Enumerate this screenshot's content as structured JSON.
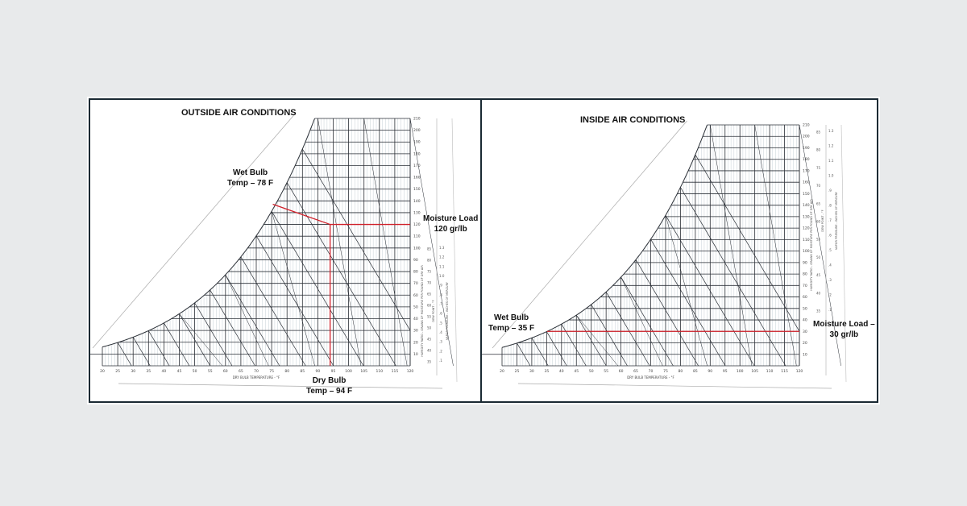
{
  "colors": {
    "background": "#e8eaeb",
    "grid": "#2a2f36",
    "fine_grid": "#b8c4cc",
    "marker": "#d0202a",
    "border": "#1a2a33"
  },
  "axes": {
    "dry_bulb_label": "DRY BULB TEMPERATURE - °F",
    "humidity_label": "HUMIDITY RATIO - GRAINS OF MOISTURE PER POUND OF DRY AIR",
    "vapor_pressure_label": "VAPOR PRESSURE - INCHES OF MERCURY",
    "dew_point_label": "DEW POINT - °F",
    "dry_bulb_ticks": [
      20,
      25,
      30,
      35,
      40,
      45,
      50,
      55,
      60,
      65,
      70,
      75,
      80,
      85,
      90,
      95,
      100,
      105,
      110,
      115,
      120
    ],
    "humidity_ticks": [
      10,
      20,
      30,
      40,
      50,
      60,
      70,
      80,
      90,
      100,
      110,
      120,
      130,
      140,
      150,
      160,
      170,
      180,
      190,
      200,
      210
    ],
    "dew_point_ticks": [
      35,
      40,
      45,
      50,
      55,
      60,
      65,
      70,
      75,
      80,
      85
    ],
    "vapor_pressure_ticks": [
      ".1",
      ".2",
      ".3",
      ".4",
      ".5",
      ".6",
      ".7",
      ".8",
      ".9",
      "1.0",
      "1.1",
      "1.2",
      "1.3"
    ]
  },
  "outside": {
    "title": "OUTSIDE AIR CONDITIONS",
    "wet_bulb": {
      "line1": "Wet Bulb",
      "line2": "Temp – 78 F",
      "value_f": 78
    },
    "moisture": {
      "line1": "Moisture Load",
      "line2": "120 gr/lb",
      "value_gr": 120
    },
    "dry_bulb": {
      "line1": "Dry Bulb",
      "line2": "Temp – 94 F",
      "value_f": 94
    }
  },
  "inside": {
    "title": "INSIDE AIR CONDITIONS",
    "wet_bulb": {
      "line1": "Wet Bulb",
      "line2": "Temp – 35 F",
      "value_f": 35
    },
    "moisture": {
      "line1": "Moisture Load –",
      "line2": "30 gr/lb",
      "value_gr": 30
    }
  }
}
